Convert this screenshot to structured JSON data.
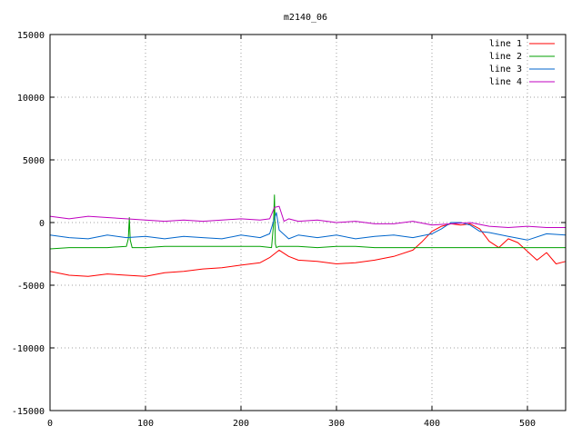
{
  "chart_data": {
    "type": "line",
    "title": "m2140_06",
    "xlabel": "",
    "ylabel": "",
    "xlim": [
      0,
      540
    ],
    "ylim": [
      -15000,
      15000
    ],
    "x_ticks": [
      0,
      100,
      200,
      300,
      400,
      500
    ],
    "y_ticks": [
      -15000,
      -10000,
      -5000,
      0,
      5000,
      10000,
      15000
    ],
    "grid": true,
    "legend_position": "top-right",
    "series": [
      {
        "name": "line 1",
        "color": "#ff0000",
        "x": [
          0,
          20,
          40,
          60,
          80,
          100,
          120,
          140,
          160,
          180,
          200,
          220,
          230,
          240,
          250,
          260,
          280,
          300,
          320,
          340,
          360,
          380,
          390,
          400,
          410,
          420,
          430,
          440,
          450,
          460,
          470,
          480,
          490,
          500,
          510,
          520,
          530,
          540
        ],
        "y": [
          -3900,
          -4200,
          -4300,
          -4100,
          -4200,
          -4300,
          -4000,
          -3900,
          -3700,
          -3600,
          -3400,
          -3200,
          -2800,
          -2200,
          -2700,
          -3000,
          -3100,
          -3300,
          -3200,
          -3000,
          -2700,
          -2200,
          -1500,
          -700,
          -300,
          -100,
          -200,
          -100,
          -500,
          -1500,
          -2000,
          -1300,
          -1600,
          -2300,
          -3000,
          -2400,
          -3300,
          -3100
        ]
      },
      {
        "name": "line 2",
        "color": "#00a000",
        "x": [
          0,
          20,
          40,
          60,
          80,
          82,
          83,
          84,
          86,
          100,
          120,
          140,
          160,
          180,
          200,
          220,
          232,
          234,
          235,
          236,
          237,
          240,
          260,
          280,
          300,
          320,
          340,
          360,
          380,
          400,
          420,
          440,
          460,
          480,
          500,
          520,
          540
        ],
        "y": [
          -2100,
          -2000,
          -2000,
          -2000,
          -1900,
          -1300,
          400,
          -1400,
          -2000,
          -2000,
          -1900,
          -1900,
          -1900,
          -1900,
          -1900,
          -1900,
          -2000,
          -200,
          2200,
          -1700,
          -2000,
          -1900,
          -1900,
          -2000,
          -1900,
          -1900,
          -2000,
          -2000,
          -2000,
          -2000,
          -2000,
          -2000,
          -2000,
          -2000,
          -2000,
          -2000,
          -2000
        ]
      },
      {
        "name": "line 3",
        "color": "#0066cc",
        "x": [
          0,
          20,
          40,
          60,
          80,
          100,
          120,
          140,
          160,
          180,
          200,
          220,
          230,
          237,
          240,
          250,
          260,
          280,
          300,
          320,
          340,
          360,
          380,
          400,
          410,
          420,
          430,
          440,
          450,
          460,
          480,
          500,
          520,
          540
        ],
        "y": [
          -1000,
          -1200,
          -1300,
          -1000,
          -1200,
          -1100,
          -1300,
          -1100,
          -1200,
          -1300,
          -1000,
          -1200,
          -900,
          800,
          -600,
          -1300,
          -1000,
          -1200,
          -1000,
          -1300,
          -1100,
          -1000,
          -1200,
          -900,
          -500,
          0,
          0,
          -200,
          -700,
          -800,
          -1100,
          -1400,
          -900,
          -1000
        ]
      },
      {
        "name": "line 4",
        "color": "#c000c0",
        "x": [
          0,
          20,
          40,
          60,
          80,
          100,
          120,
          140,
          160,
          180,
          200,
          220,
          230,
          235,
          240,
          245,
          250,
          260,
          280,
          300,
          320,
          340,
          360,
          380,
          400,
          420,
          440,
          460,
          480,
          500,
          520,
          540
        ],
        "y": [
          500,
          300,
          500,
          400,
          300,
          200,
          100,
          200,
          100,
          200,
          300,
          200,
          300,
          1200,
          1300,
          100,
          300,
          100,
          200,
          0,
          100,
          -100,
          -100,
          100,
          -200,
          -100,
          0,
          -300,
          -400,
          -300,
          -400,
          -400
        ]
      }
    ]
  }
}
